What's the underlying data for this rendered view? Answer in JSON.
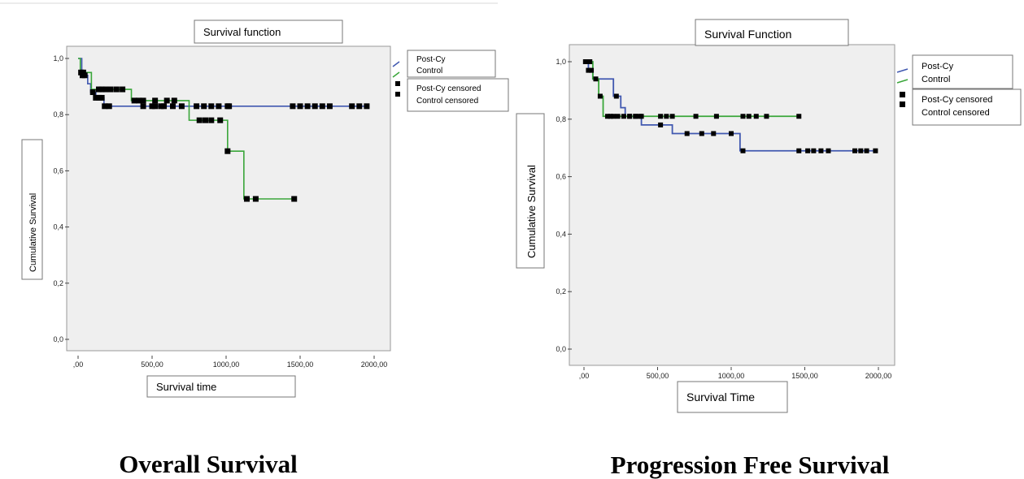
{
  "colors": {
    "post_cy": "#4058b0",
    "control": "#3aa63a",
    "plot_bg": "#efefef",
    "censor": "#000000"
  },
  "chart_data": [
    {
      "type": "line",
      "title": "Survival function",
      "xlabel": "Survival time",
      "ylabel": "Cumulative Survival",
      "caption": "Overall Survival",
      "xlim": [
        0,
        2000
      ],
      "ylim": [
        0,
        1
      ],
      "xticks": [
        0,
        500,
        1000,
        1500,
        2000
      ],
      "xtick_labels": [
        ",00",
        "500,00",
        "1000,00",
        "1500,00",
        "2000,00"
      ],
      "yticks": [
        0,
        0.2,
        0.4,
        0.6,
        0.8,
        1.0
      ],
      "ytick_labels": [
        "0,0",
        "0,2",
        "0,4",
        "0,6",
        "0,8",
        "1,0"
      ],
      "grid": false,
      "legend_position": "top-right",
      "legend": [
        "Post-Cy",
        "Control",
        "Post-Cy censored",
        "Control censored"
      ],
      "series": [
        {
          "name": "Post-Cy",
          "color_key": "post_cy",
          "steps": [
            [
              0,
              1.0
            ],
            [
              25,
              0.94
            ],
            [
              65,
              0.91
            ],
            [
              85,
              0.88
            ],
            [
              120,
              0.86
            ],
            [
              175,
              0.83
            ],
            [
              1960,
              0.83
            ]
          ],
          "censored": [
            30,
            45,
            100,
            120,
            140,
            160,
            180,
            210,
            440,
            500,
            520,
            560,
            580,
            640,
            700,
            800,
            850,
            900,
            950,
            1010,
            1020,
            1450,
            1500,
            1550,
            1600,
            1650,
            1700,
            1850,
            1900,
            1950
          ]
        },
        {
          "name": "Control",
          "color_key": "control",
          "steps": [
            [
              0,
              1.0
            ],
            [
              15,
              0.95
            ],
            [
              90,
              0.89
            ],
            [
              360,
              0.85
            ],
            [
              750,
              0.78
            ],
            [
              1010,
              0.67
            ],
            [
              1120,
              0.5
            ],
            [
              1450,
              0.5
            ]
          ],
          "censored": [
            20,
            35,
            140,
            160,
            185,
            220,
            260,
            300,
            380,
            410,
            440,
            520,
            600,
            650,
            820,
            860,
            900,
            960,
            1010,
            1140,
            1200,
            1460
          ]
        }
      ]
    },
    {
      "type": "line",
      "title": "Survival Function",
      "xlabel": "Survival Time",
      "ylabel": "Cumulative Survival",
      "caption": "Progression Free Survival",
      "xlim": [
        0,
        2000
      ],
      "ylim": [
        0,
        1
      ],
      "xticks": [
        0,
        500,
        1000,
        1500,
        2000
      ],
      "xtick_labels": [
        ",00",
        "500,00",
        "1000,00",
        "1500,00",
        "2000,00"
      ],
      "yticks": [
        0,
        0.2,
        0.4,
        0.6,
        0.8,
        1.0
      ],
      "ytick_labels": [
        "0,0",
        "0,2",
        "0,4",
        "0,6",
        "0,8",
        "1,0"
      ],
      "grid": false,
      "legend_position": "top-right",
      "legend": [
        "Post-Cy",
        "Control",
        "Post-Cy censored",
        "Control censored"
      ],
      "series": [
        {
          "name": "Post-Cy",
          "color_key": "post_cy",
          "steps": [
            [
              0,
              1.0
            ],
            [
              30,
              0.97
            ],
            [
              60,
              0.94
            ],
            [
              200,
              0.88
            ],
            [
              250,
              0.84
            ],
            [
              280,
              0.81
            ],
            [
              390,
              0.78
            ],
            [
              600,
              0.75
            ],
            [
              1060,
              0.69
            ],
            [
              1980,
              0.69
            ]
          ],
          "censored": [
            30,
            50,
            220,
            310,
            350,
            380,
            520,
            700,
            800,
            880,
            1000,
            1080,
            1460,
            1520,
            1560,
            1610,
            1660,
            1840,
            1880,
            1920,
            1980
          ]
        },
        {
          "name": "Control",
          "color_key": "control",
          "steps": [
            [
              0,
              1.0
            ],
            [
              60,
              0.94
            ],
            [
              100,
              0.88
            ],
            [
              130,
              0.81
            ],
            [
              1450,
              0.81
            ]
          ],
          "censored": [
            10,
            20,
            40,
            80,
            110,
            160,
            180,
            200,
            230,
            270,
            310,
            350,
            390,
            520,
            560,
            600,
            760,
            900,
            1080,
            1120,
            1170,
            1240,
            1460
          ]
        }
      ]
    }
  ]
}
